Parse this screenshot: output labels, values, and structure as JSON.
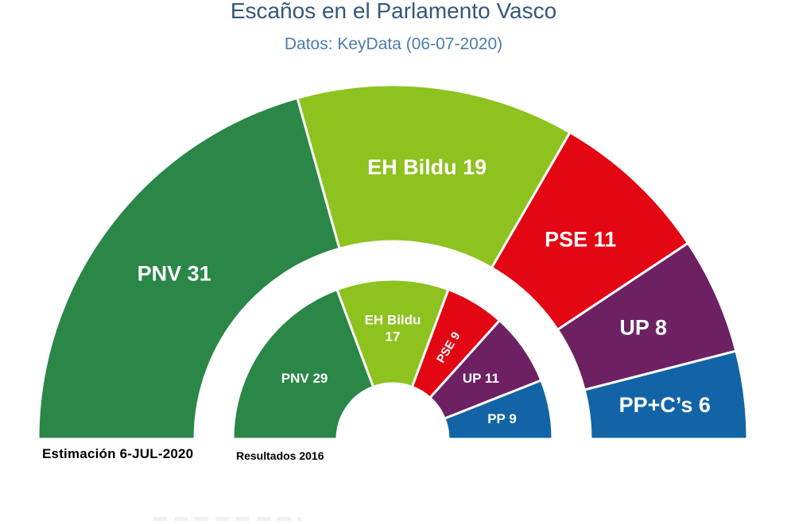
{
  "header": {
    "title": "Escaños en el Parlamento Vasco",
    "subtitle": "Datos: KeyData (06-07-2020)"
  },
  "chart_data": {
    "type": "pie",
    "variant": "double-hemicycle-parliament",
    "title": "Escaños en el Parlamento Vasco",
    "subtitle": "Datos: KeyData (06-07-2020)",
    "total_seats_per_ring": 75,
    "orientation": "half-circle-180-degrees",
    "center": {
      "x": 494,
      "y": 553
    },
    "slice_gap_color": "#ffffff",
    "slice_gap_width": 3,
    "rings": [
      {
        "id": "estimacion",
        "caption": "Estimación 6-JUL-2020",
        "inner_radius": 249,
        "outer_radius": 446,
        "label_radius": 345,
        "label_font_size": 27,
        "series": [
          {
            "party": "PNV",
            "seats": 31,
            "label": "PNV 31",
            "color": "#2A8747"
          },
          {
            "party": "EH Bildu",
            "seats": 19,
            "label": "EH Bildu 19",
            "color": "#8DC21F"
          },
          {
            "party": "PSE",
            "seats": 11,
            "label": "PSE 11",
            "color": "#E30613"
          },
          {
            "party": "UP",
            "seats": 8,
            "label": "UP 8",
            "color": "#6D2162"
          },
          {
            "party": "PP+C's",
            "seats": 6,
            "label": "PP+C’s 6",
            "color": "#1264A6"
          }
        ]
      },
      {
        "id": "resultados",
        "caption": "Resultados 2016",
        "inner_radius": 70,
        "outer_radius": 201,
        "label_radius": 135,
        "label_font_size": 17,
        "series": [
          {
            "party": "PNV",
            "seats": 29,
            "label": "PNV 29",
            "color": "#2A8747"
          },
          {
            "party": "EH Bildu",
            "seats": 17,
            "label": "EH Bildu\n17",
            "color": "#8DC21F",
            "label_radius": 140
          },
          {
            "party": "PSE",
            "seats": 9,
            "label": "PSE 9",
            "color": "#E30613",
            "label_rotate": -59,
            "label_font_size": 15
          },
          {
            "party": "UP",
            "seats": 11,
            "label": "UP 11",
            "color": "#6D2162"
          },
          {
            "party": "PP",
            "seats": 9,
            "label": "PP 9",
            "color": "#1264A6",
            "label_radius": 140
          }
        ]
      }
    ]
  },
  "colors": {
    "title": "#33587A",
    "subtitle": "#4B7DAB",
    "slice_label": "#FFFFFF",
    "caption": "#000000"
  }
}
